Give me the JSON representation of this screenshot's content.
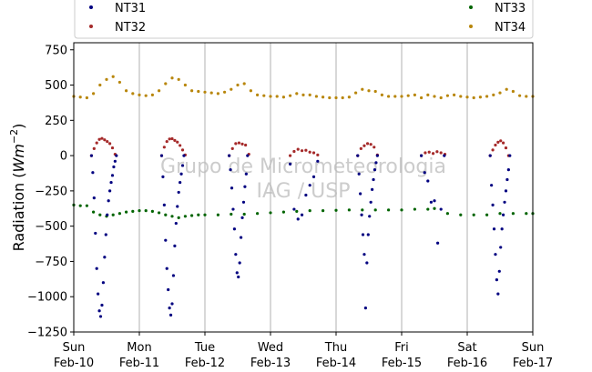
{
  "chart_data": {
    "type": "scatter",
    "title": "",
    "ylabel": "Radiation",
    "ylabel_unit_base": "Wm",
    "ylabel_unit_exp": "−2",
    "xlabel": "",
    "ylim": [
      -1250,
      800
    ],
    "yticks": [
      -1250,
      -1000,
      -750,
      -500,
      -250,
      0,
      250,
      500,
      750
    ],
    "ytick_labels": [
      "−1250",
      "−1000",
      "−750",
      "−500",
      "−250",
      "0",
      "250",
      "500",
      "750"
    ],
    "xlim": [
      0,
      7
    ],
    "xticks": [
      {
        "x": 0,
        "day": "Sun",
        "date": "Feb-10"
      },
      {
        "x": 1,
        "day": "Mon",
        "date": "Feb-11"
      },
      {
        "x": 2,
        "day": "Tue",
        "date": "Feb-12"
      },
      {
        "x": 3,
        "day": "Wed",
        "date": "Feb-13"
      },
      {
        "x": 4,
        "day": "Thu",
        "date": "Feb-14"
      },
      {
        "x": 5,
        "day": "Fri",
        "date": "Feb-15"
      },
      {
        "x": 6,
        "day": "Sat",
        "date": "Feb-16"
      },
      {
        "x": 7,
        "day": "Sun",
        "date": "Feb-17"
      }
    ],
    "grid": "vertical",
    "legend_position": "top",
    "watermark": [
      "Grupo de Micrometeorologia",
      "IAG / USP"
    ],
    "series": [
      {
        "name": "NT31",
        "color": "#000080",
        "x": [
          0.27,
          0.29,
          0.31,
          0.33,
          0.35,
          0.37,
          0.39,
          0.41,
          0.43,
          0.45,
          0.47,
          0.49,
          0.51,
          0.53,
          0.55,
          0.57,
          0.59,
          0.61,
          0.63,
          0.65,
          1.34,
          1.36,
          1.38,
          1.4,
          1.42,
          1.44,
          1.46,
          1.48,
          1.5,
          1.52,
          1.54,
          1.56,
          1.58,
          1.6,
          1.62,
          1.64,
          1.66,
          1.68,
          2.37,
          2.39,
          2.41,
          2.43,
          2.45,
          2.47,
          2.49,
          2.51,
          2.53,
          2.55,
          2.57,
          2.59,
          2.61,
          2.63,
          2.65,
          3.3,
          3.36,
          3.42,
          3.48,
          3.54,
          3.6,
          3.66,
          3.72,
          4.33,
          4.35,
          4.37,
          4.39,
          4.41,
          4.43,
          4.45,
          4.47,
          4.49,
          4.51,
          4.53,
          4.55,
          4.57,
          4.59,
          4.61,
          4.63,
          5.3,
          5.35,
          5.4,
          5.45,
          5.5,
          5.55,
          5.6,
          5.65,
          6.35,
          6.37,
          6.39,
          6.41,
          6.43,
          6.45,
          6.47,
          6.49,
          6.51,
          6.53,
          6.55,
          6.57,
          6.59,
          6.61,
          6.63,
          6.65
        ],
        "y": [
          0,
          -120,
          -300,
          -550,
          -800,
          -980,
          -1100,
          -1140,
          -1060,
          -900,
          -720,
          -560,
          -420,
          -320,
          -250,
          -190,
          -140,
          -80,
          -40,
          0,
          0,
          -150,
          -350,
          -600,
          -800,
          -950,
          -1080,
          -1130,
          -1050,
          -850,
          -640,
          -480,
          -360,
          -260,
          -190,
          -130,
          -70,
          0,
          0,
          -100,
          -230,
          -380,
          -520,
          -700,
          -830,
          -860,
          -760,
          -580,
          -440,
          -330,
          -220,
          -130,
          0,
          -60,
          -380,
          -450,
          -420,
          -280,
          -210,
          -150,
          -40,
          0,
          -130,
          -270,
          -420,
          -560,
          -700,
          -1080,
          -760,
          -560,
          -430,
          -330,
          -240,
          -170,
          -100,
          -50,
          0,
          0,
          -120,
          -180,
          -330,
          -320,
          -620,
          -380,
          0,
          0,
          -210,
          -350,
          -520,
          -700,
          -880,
          -980,
          -820,
          -650,
          -520,
          -420,
          -330,
          -250,
          -170,
          -100,
          0
        ]
      },
      {
        "name": "NT32",
        "color": "#a52a2a",
        "x": [
          0.27,
          0.31,
          0.35,
          0.39,
          0.43,
          0.47,
          0.51,
          0.55,
          0.59,
          0.63,
          1.34,
          1.38,
          1.42,
          1.46,
          1.5,
          1.54,
          1.58,
          1.62,
          1.66,
          1.7,
          2.37,
          2.42,
          2.47,
          2.52,
          2.57,
          2.62,
          2.67,
          3.3,
          3.36,
          3.42,
          3.48,
          3.54,
          3.6,
          3.66,
          3.72,
          4.33,
          4.38,
          4.43,
          4.48,
          4.53,
          4.58,
          4.63,
          5.3,
          5.36,
          5.42,
          5.48,
          5.54,
          5.6,
          5.66,
          6.35,
          6.39,
          6.43,
          6.47,
          6.51,
          6.55,
          6.59,
          6.63
        ],
        "y": [
          0,
          50,
          90,
          115,
          122,
          112,
          100,
          85,
          55,
          10,
          0,
          60,
          100,
          118,
          120,
          108,
          96,
          72,
          40,
          5,
          0,
          50,
          85,
          90,
          82,
          75,
          10,
          0,
          30,
          45,
          35,
          38,
          25,
          20,
          5,
          0,
          50,
          70,
          85,
          80,
          60,
          5,
          0,
          20,
          25,
          15,
          28,
          20,
          10,
          0,
          40,
          75,
          95,
          105,
          90,
          55,
          0
        ]
      },
      {
        "name": "NT33",
        "color": "#006400",
        "x": [
          0,
          0.1,
          0.2,
          0.3,
          0.4,
          0.5,
          0.6,
          0.7,
          0.8,
          0.9,
          1,
          1.1,
          1.2,
          1.3,
          1.4,
          1.5,
          1.6,
          1.7,
          1.8,
          1.9,
          2,
          2.2,
          2.4,
          2.6,
          2.8,
          3,
          3.2,
          3.4,
          3.6,
          3.8,
          4,
          4.2,
          4.4,
          4.6,
          4.8,
          5,
          5.2,
          5.4,
          5.5,
          5.7,
          5.9,
          6.1,
          6.3,
          6.5,
          6.7,
          6.9,
          7
        ],
        "y": [
          -350,
          -355,
          -355,
          -400,
          -420,
          -430,
          -420,
          -410,
          -400,
          -395,
          -390,
          -390,
          -395,
          -405,
          -420,
          -430,
          -440,
          -430,
          -425,
          -420,
          -420,
          -420,
          -415,
          -415,
          -410,
          -405,
          -400,
          -395,
          -390,
          -390,
          -388,
          -385,
          -385,
          -385,
          -385,
          -385,
          -380,
          -380,
          -375,
          -410,
          -420,
          -420,
          -420,
          -410,
          -410,
          -410,
          -410
        ]
      },
      {
        "name": "NT34",
        "color": "#b8860b",
        "x": [
          0,
          0.1,
          0.2,
          0.3,
          0.4,
          0.5,
          0.6,
          0.7,
          0.8,
          0.9,
          1,
          1.1,
          1.2,
          1.3,
          1.4,
          1.5,
          1.6,
          1.7,
          1.8,
          1.9,
          2,
          2.1,
          2.2,
          2.3,
          2.4,
          2.5,
          2.6,
          2.7,
          2.8,
          2.9,
          3,
          3.1,
          3.2,
          3.3,
          3.4,
          3.5,
          3.6,
          3.7,
          3.8,
          3.9,
          4,
          4.1,
          4.2,
          4.3,
          4.4,
          4.5,
          4.6,
          4.7,
          4.8,
          4.9,
          5,
          5.1,
          5.2,
          5.3,
          5.4,
          5.5,
          5.6,
          5.7,
          5.8,
          5.9,
          6,
          6.1,
          6.2,
          6.3,
          6.4,
          6.5,
          6.6,
          6.7,
          6.8,
          6.9,
          7
        ],
        "y": [
          420,
          415,
          410,
          440,
          500,
          540,
          560,
          520,
          460,
          440,
          430,
          425,
          430,
          460,
          510,
          550,
          540,
          500,
          460,
          455,
          450,
          445,
          440,
          450,
          470,
          500,
          510,
          460,
          430,
          425,
          420,
          420,
          415,
          425,
          440,
          430,
          430,
          420,
          415,
          410,
          410,
          410,
          415,
          445,
          470,
          460,
          455,
          430,
          420,
          420,
          420,
          425,
          430,
          410,
          430,
          420,
          410,
          425,
          430,
          420,
          415,
          410,
          415,
          420,
          430,
          445,
          470,
          455,
          425,
          420,
          420
        ]
      }
    ]
  }
}
